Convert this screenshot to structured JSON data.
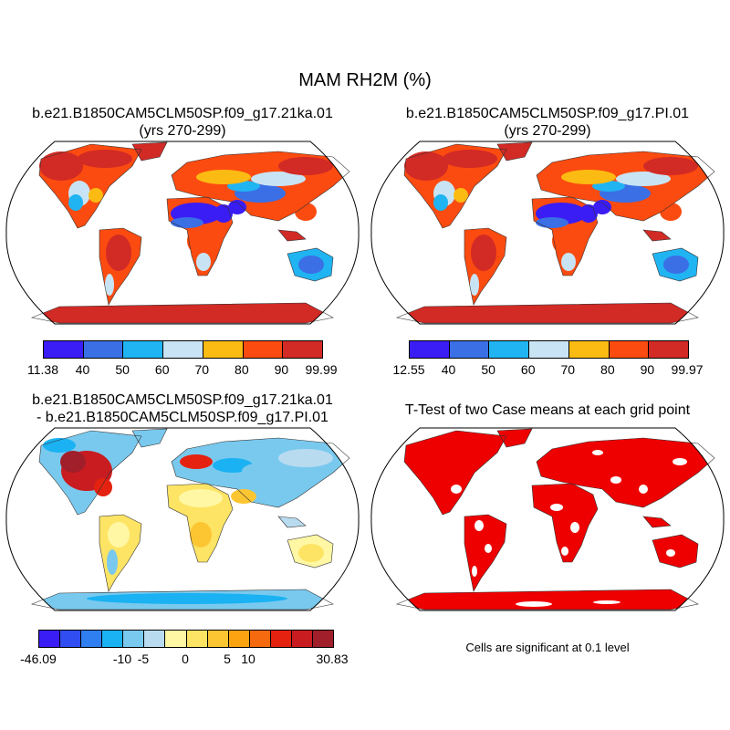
{
  "main_title": "MAM RH2M (%)",
  "panels": [
    {
      "title_line1": "b.e21.B1850CAM5CLM50SP.f09_g17.21ka.01",
      "title_line2": "(yrs 270-299)",
      "colorbar": {
        "colors": [
          "#3a1cf5",
          "#3a6fe6",
          "#20b4f2",
          "#c8e4f4",
          "#fbbb12",
          "#fb4b10",
          "#d22a25"
        ],
        "labels": [
          "11.38",
          "40",
          "50",
          "60",
          "70",
          "80",
          "90",
          "99.99"
        ]
      }
    },
    {
      "title_line1": "b.e21.B1850CAM5CLM50SP.f09_g17.PI.01",
      "title_line2": "(yrs 270-299)",
      "colorbar": {
        "colors": [
          "#3a1cf5",
          "#3a6fe6",
          "#20b4f2",
          "#c8e4f4",
          "#fbbb12",
          "#fb4b10",
          "#d22a25"
        ],
        "labels": [
          "12.55",
          "40",
          "50",
          "60",
          "70",
          "80",
          "90",
          "99.97"
        ]
      }
    },
    {
      "title_line1": "b.e21.B1850CAM5CLM50SP.f09_g17.21ka.01",
      "title_line2": "- b.e21.B1850CAM5CLM50SP.f09_g17.PI.01",
      "colorbar": {
        "colors": [
          "#3a1cf5",
          "#2f4df0",
          "#2f7ff0",
          "#1ab2f2",
          "#79c9ee",
          "#b9dbf0",
          "#fff7a3",
          "#fde464",
          "#fcc532",
          "#fca311",
          "#f56a0e",
          "#e4220f",
          "#c91c20",
          "#a01f2a"
        ],
        "labels": [
          "-46.09",
          "-10",
          "-5",
          "0",
          "5",
          "10",
          "30.83"
        ]
      }
    },
    {
      "title_line1": "T-Test of two Case means at each grid point",
      "note": "Cells are significant at 0.1 level"
    }
  ]
}
